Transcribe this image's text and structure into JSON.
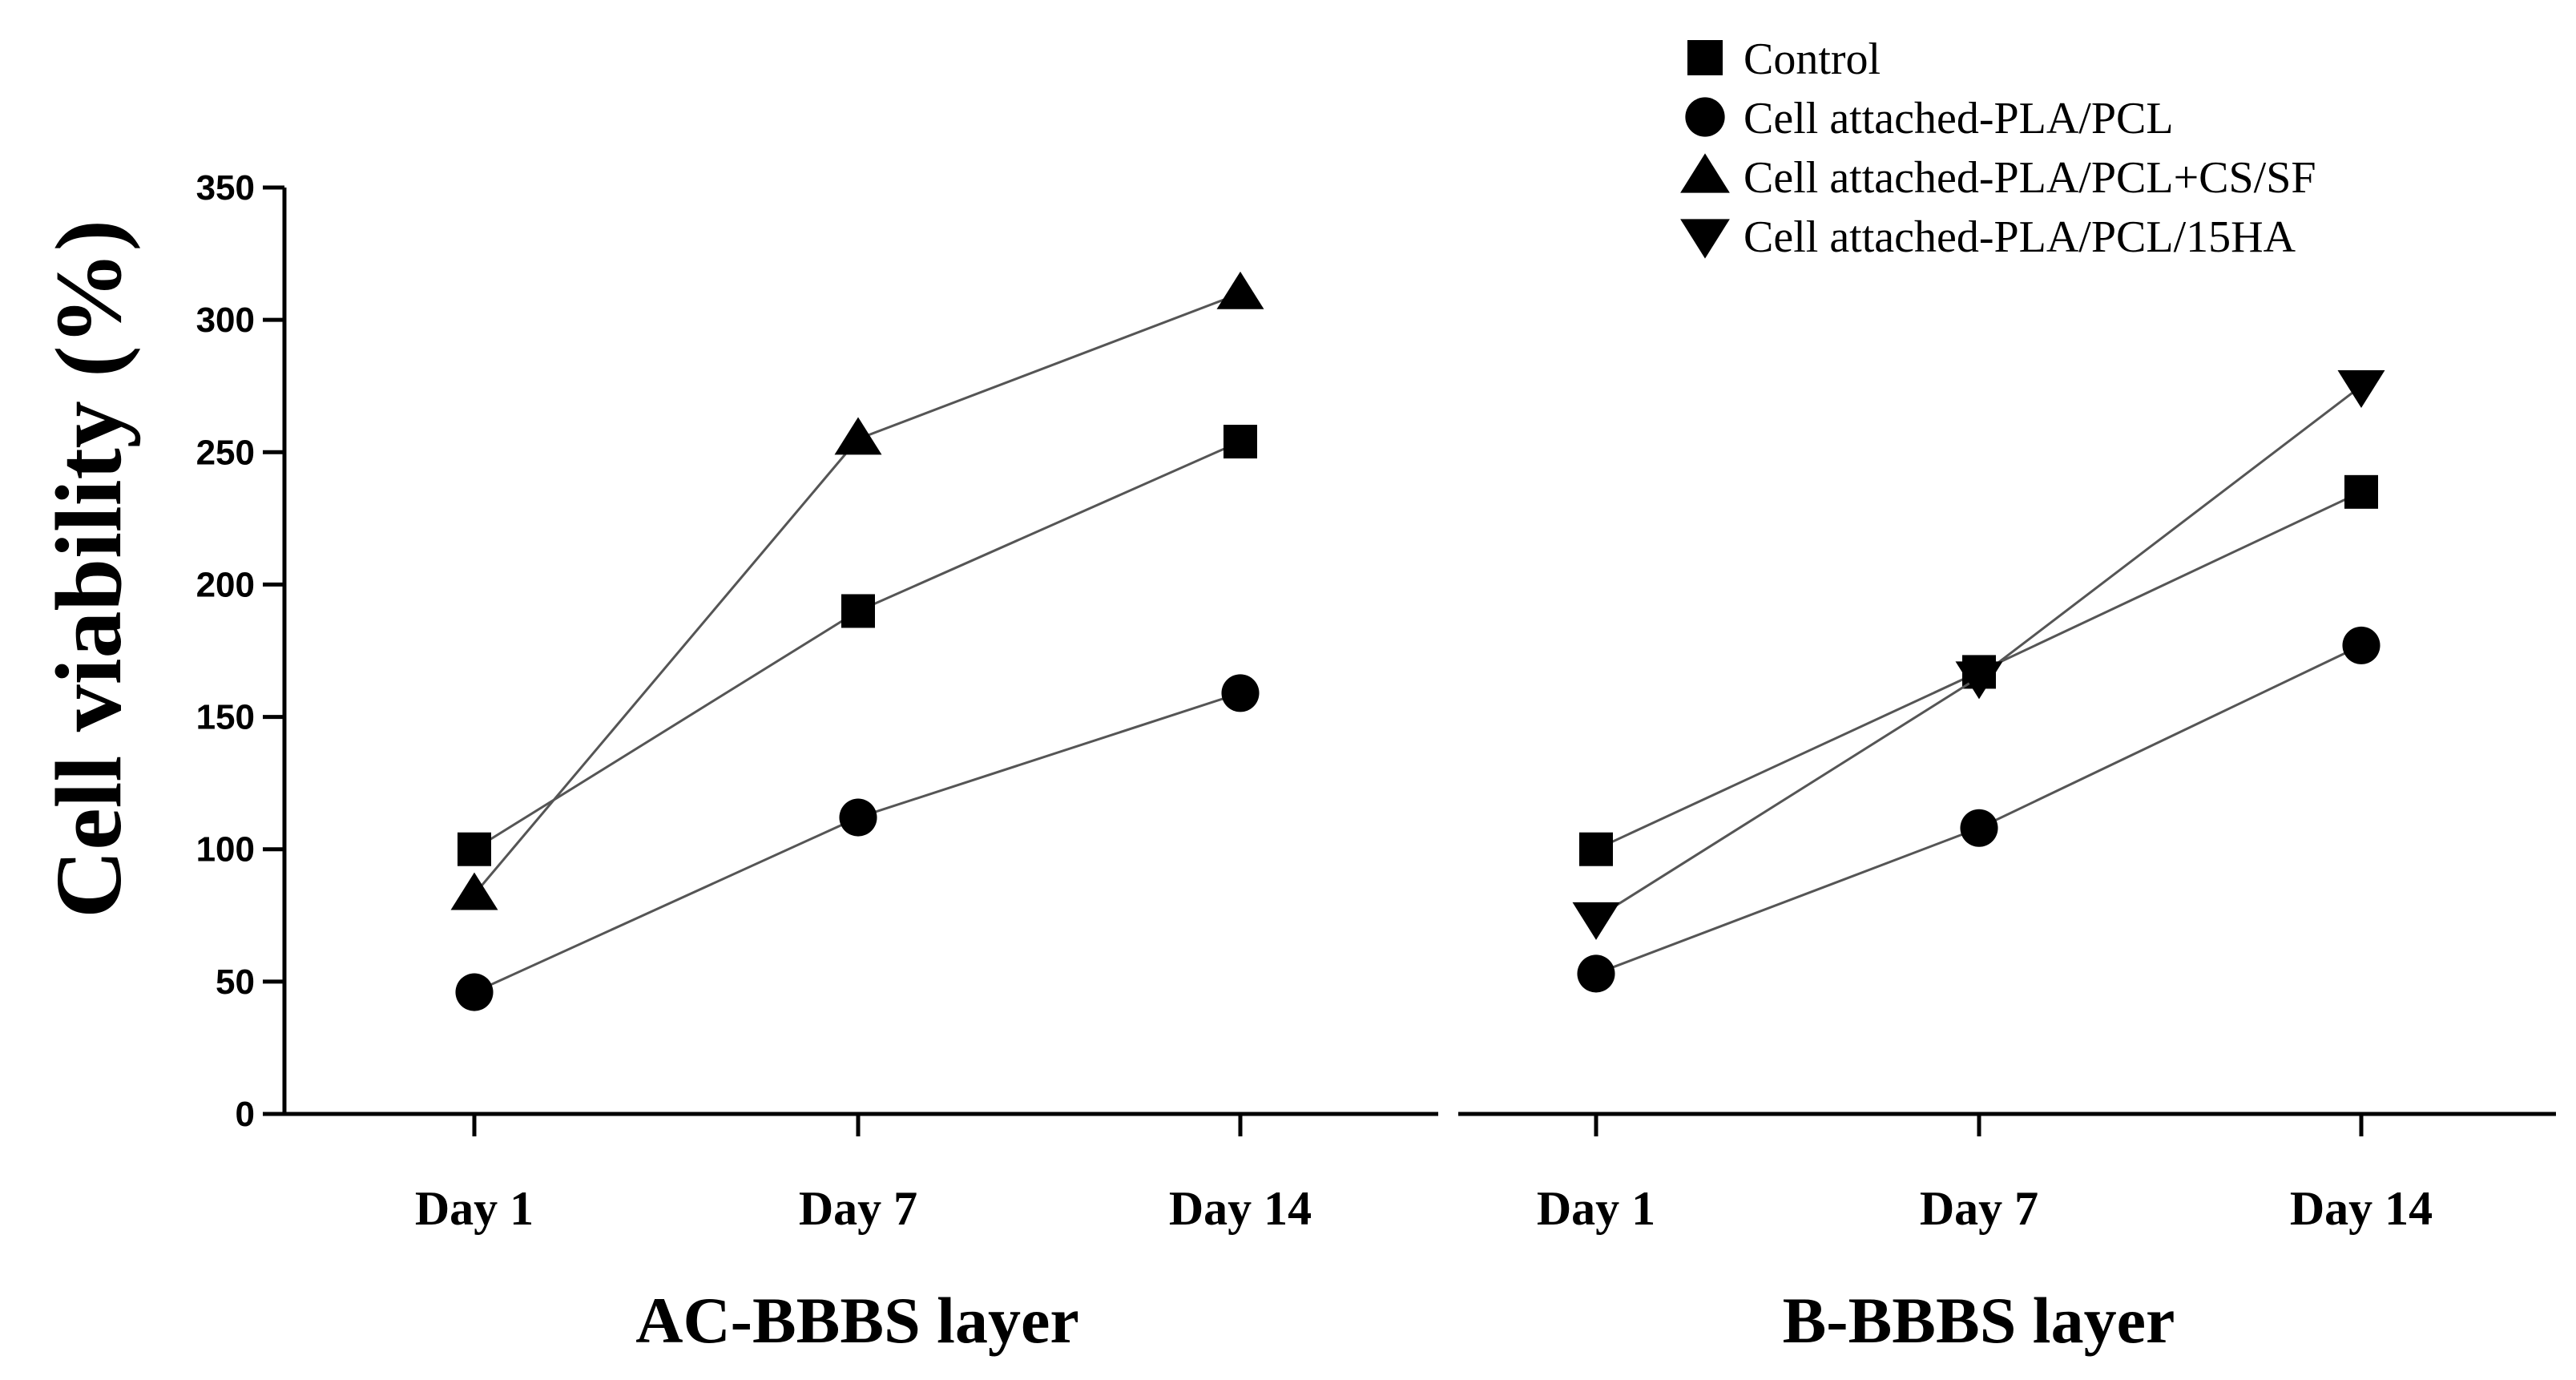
{
  "chart_data": {
    "type": "line",
    "ylabel": "Cell viability (%)",
    "ylim": [
      0,
      350
    ],
    "yticks": [
      0,
      50,
      100,
      150,
      200,
      250,
      300,
      350
    ],
    "categories": [
      "Day 1",
      "Day 7",
      "Day 14"
    ],
    "legend_position": "top-right",
    "legend": [
      {
        "name": "Control",
        "marker": "square"
      },
      {
        "name": "Cell attached-PLA/PCL",
        "marker": "circle"
      },
      {
        "name": "Cell attached-PLA/PCL+CS/SF",
        "marker": "triangle-up"
      },
      {
        "name": "Cell attached-PLA/PCL/15HA",
        "marker": "triangle-down"
      }
    ],
    "panels": [
      {
        "title": "AC-BBBS layer",
        "series": [
          {
            "name": "Control",
            "marker": "square",
            "values": [
              100,
              190,
              254
            ]
          },
          {
            "name": "Cell attached-PLA/PCL",
            "marker": "circle",
            "values": [
              46,
              112,
              159
            ]
          },
          {
            "name": "Cell attached-PLA/PCL+CS/SF",
            "marker": "triangle-up",
            "values": [
              83,
              255,
              310
            ]
          }
        ]
      },
      {
        "title": "B-BBBS layer",
        "series": [
          {
            "name": "Control",
            "marker": "square",
            "values": [
              100,
              167,
              235
            ]
          },
          {
            "name": "Cell attached-PLA/PCL",
            "marker": "circle",
            "values": [
              53,
              108,
              177
            ]
          },
          {
            "name": "Cell attached-PLA/PCL/15HA",
            "marker": "triangle-down",
            "values": [
              74,
              165,
              275
            ]
          }
        ]
      }
    ]
  }
}
